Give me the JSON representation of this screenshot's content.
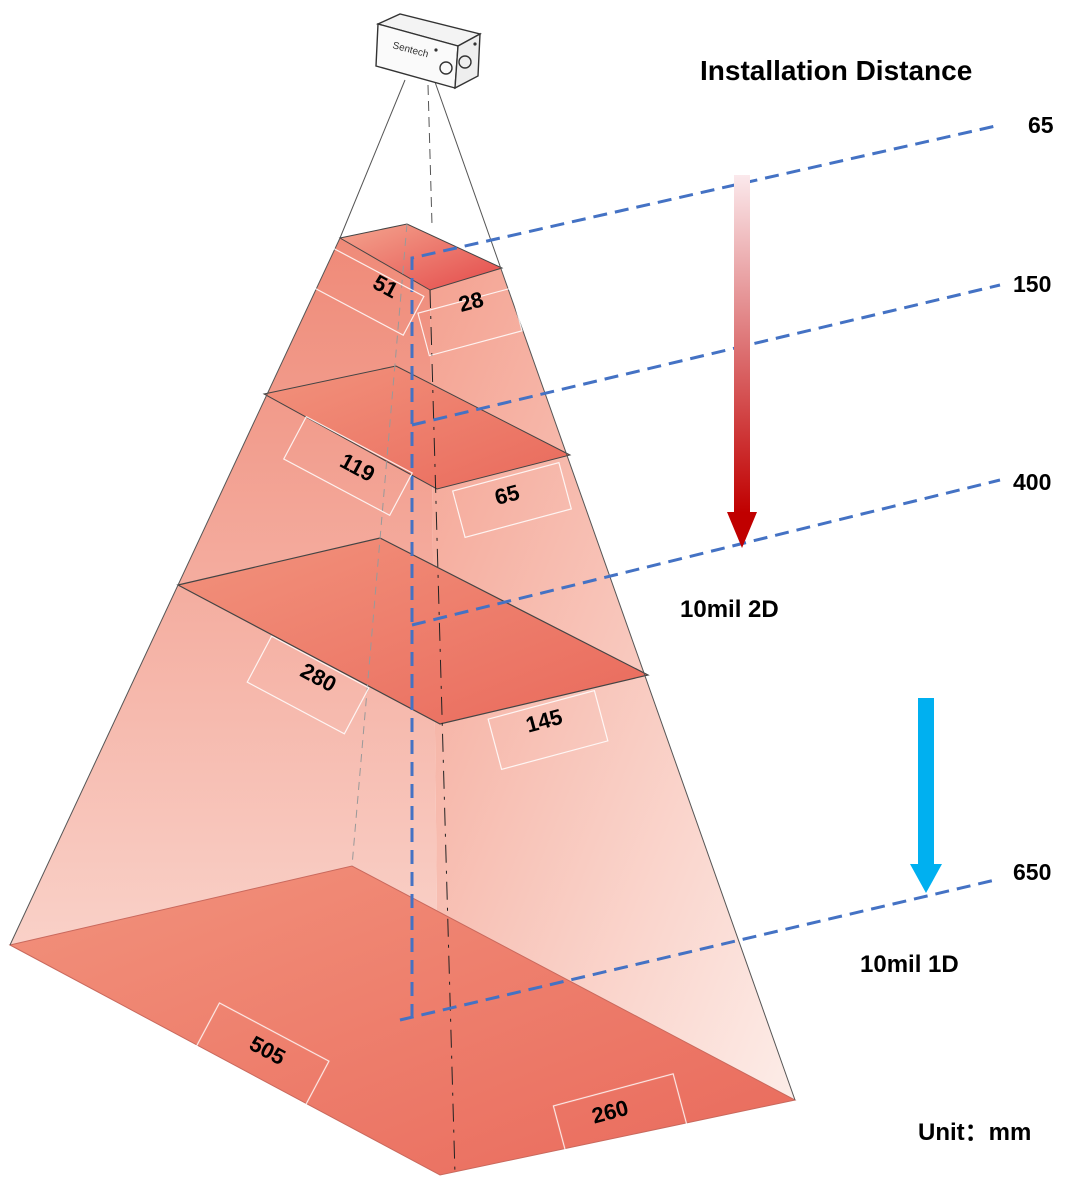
{
  "title": "Installation Distance",
  "distances": [
    "65",
    "150",
    "400",
    "650"
  ],
  "widths": [
    "51",
    "119",
    "280",
    "505"
  ],
  "heights": [
    "28",
    "65",
    "145",
    "260"
  ],
  "ranges": [
    "10mil 2D",
    "10mil 1D"
  ],
  "unit_label": "Unit：mm",
  "scanner_logo": "Sentech",
  "colors": {
    "fov_fill": "#ef7b6b",
    "fov_light": "#fbe5df",
    "guide_line": "#4472c4",
    "arrow_2d": "#c00000",
    "arrow_1d": "#00b0f0"
  }
}
